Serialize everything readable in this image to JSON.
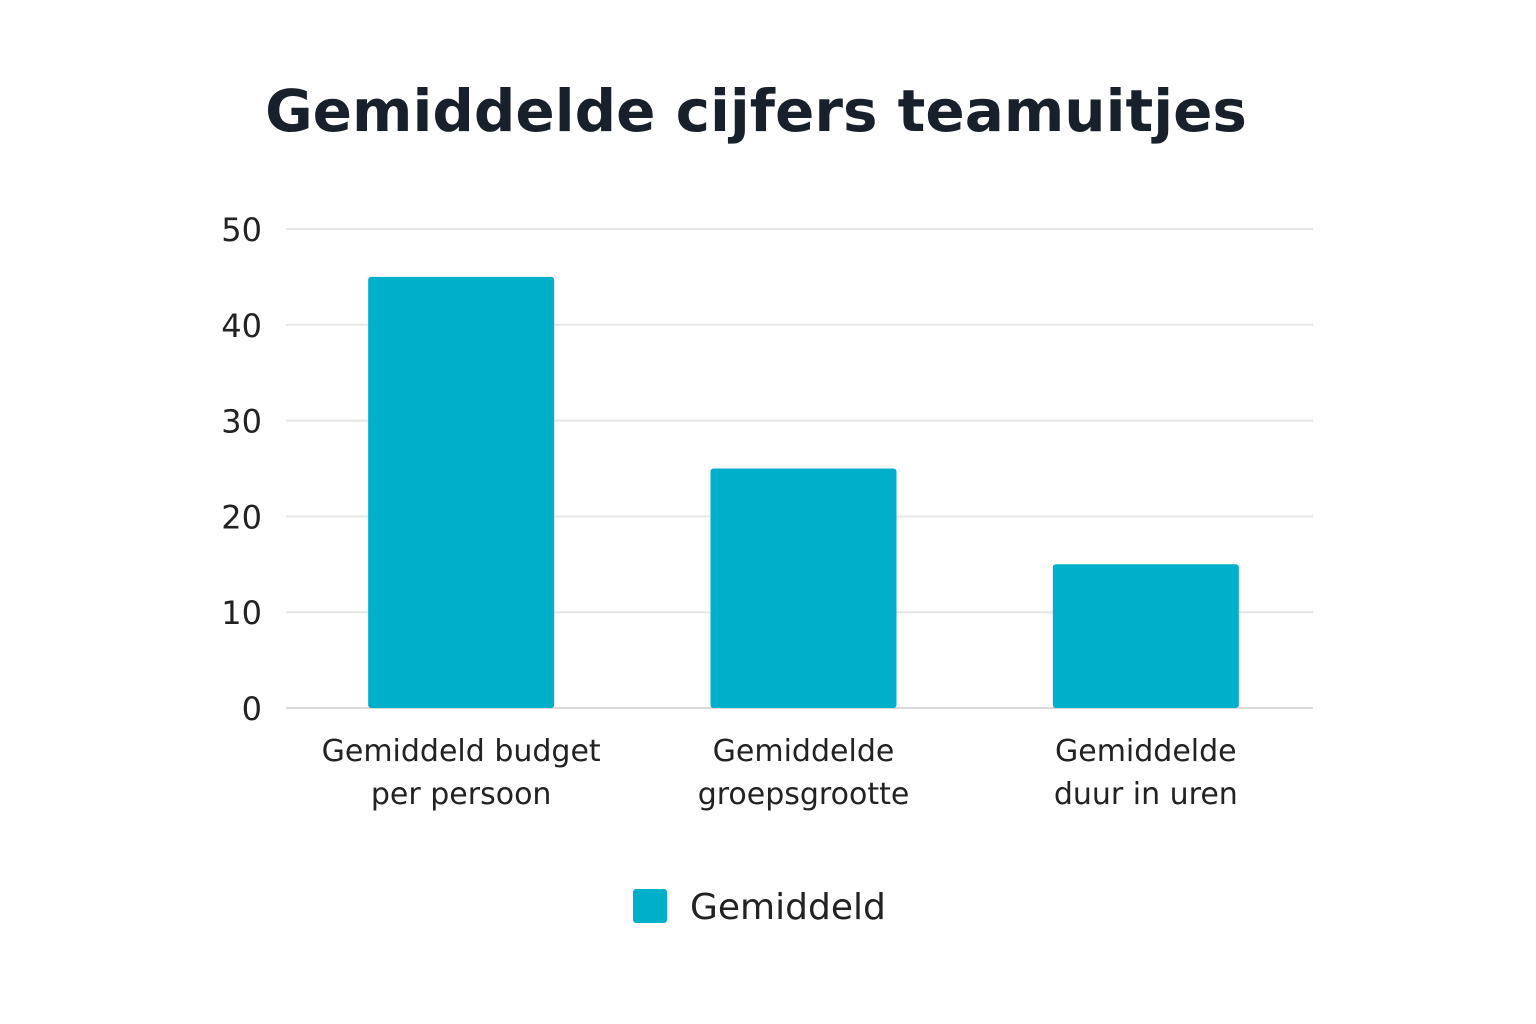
{
  "chart_data": {
    "type": "bar",
    "title": "Gemiddelde cijfers teamuitjes",
    "xlabel": "",
    "ylabel": "",
    "categories": [
      [
        "Gemiddeld budget",
        "per persoon"
      ],
      [
        "Gemiddelde",
        "groepsgrootte"
      ],
      [
        "Gemiddelde",
        "duur in uren"
      ]
    ],
    "series": [
      {
        "name": "Gemiddeld",
        "values": [
          45,
          25,
          15
        ],
        "color": "#00b0ca"
      }
    ],
    "ylim": [
      0,
      50
    ],
    "yticks": [
      0,
      10,
      20,
      30,
      40,
      50
    ],
    "grid": true,
    "legend_position": "bottom-center"
  }
}
